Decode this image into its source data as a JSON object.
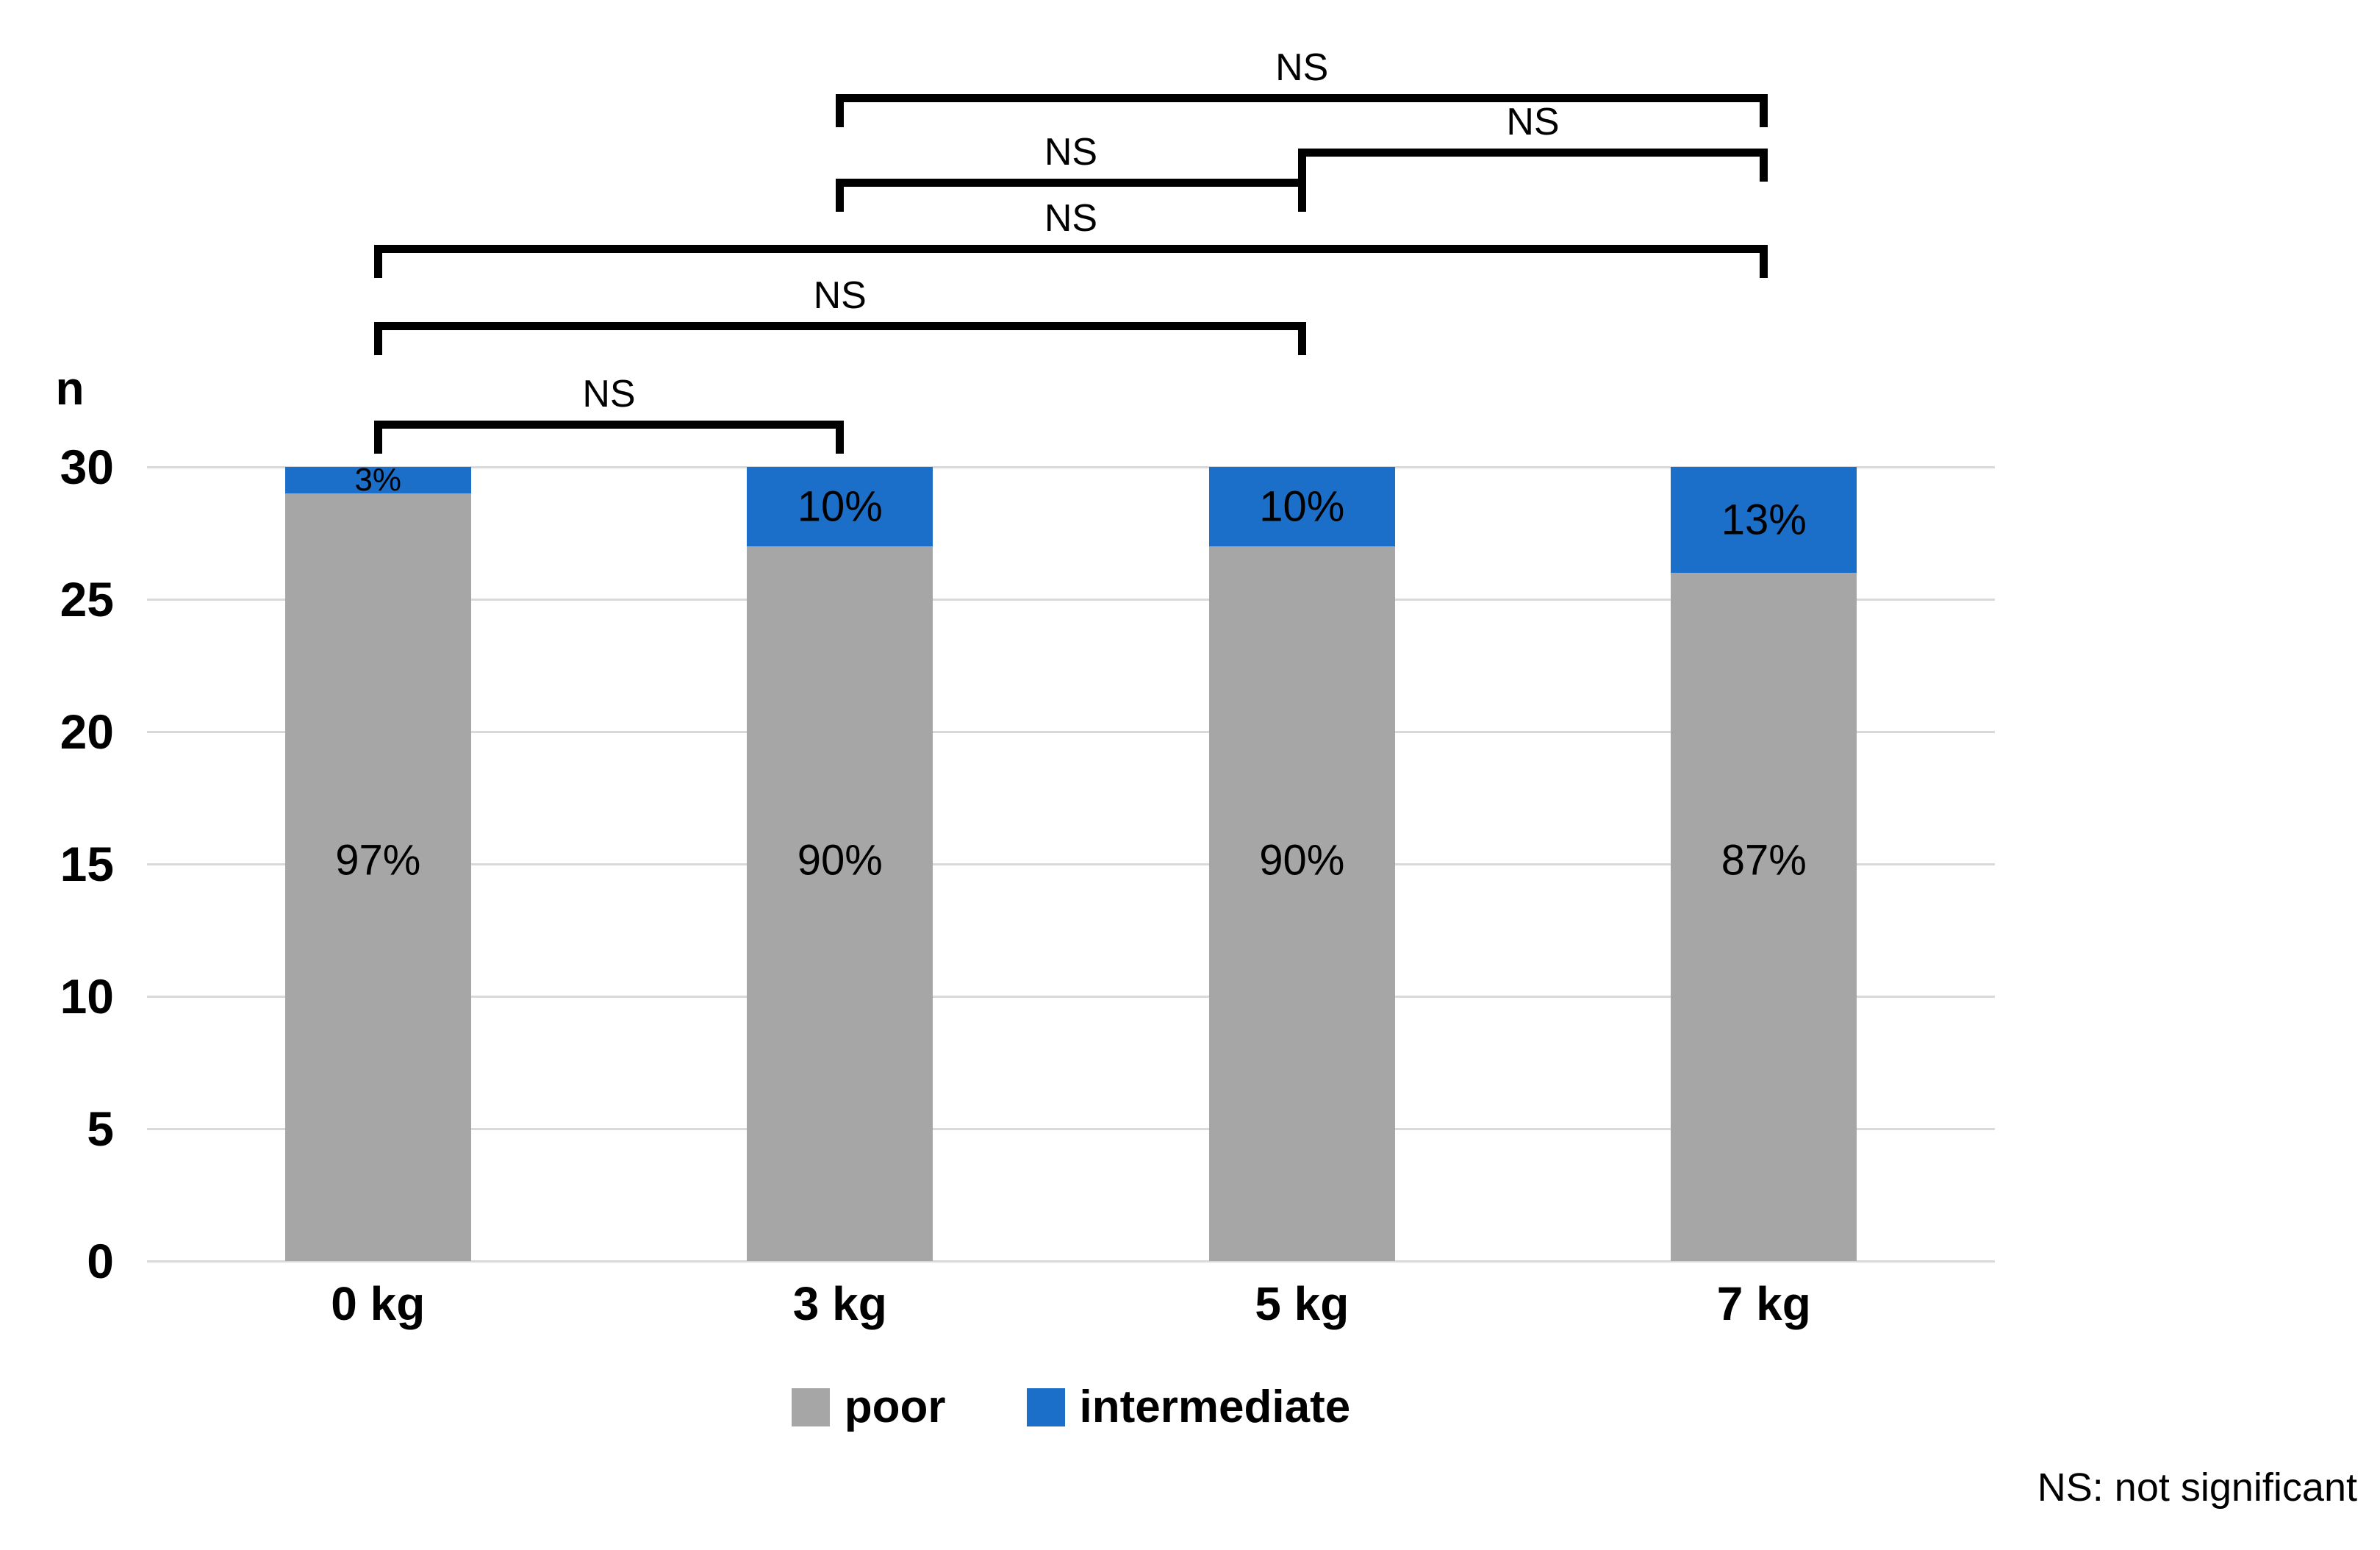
{
  "figure": {
    "y_axis_title": "n",
    "footnote": "NS: not significant"
  },
  "chart_data": {
    "type": "bar",
    "stacked": true,
    "categories": [
      "0 kg",
      "3 kg",
      "5 kg",
      "7 kg"
    ],
    "ylabel": "n",
    "ylim": [
      0,
      30
    ],
    "yticks": [
      0,
      5,
      10,
      15,
      20,
      25,
      30
    ],
    "grid": true,
    "gridline_color": "#d9d9d9",
    "series": [
      {
        "name": "poor",
        "color": "#a6a6a6",
        "values": [
          29,
          27,
          27,
          26
        ],
        "labels": [
          "97%",
          "90%",
          "90%",
          "87%"
        ]
      },
      {
        "name": "intermediate",
        "color": "#1b6fc8",
        "values": [
          1,
          3,
          3,
          4
        ],
        "labels": [
          "3%",
          "10%",
          "10%",
          "13%"
        ]
      }
    ],
    "legend_position": "bottom",
    "legend": [
      {
        "label": "poor",
        "color": "#a6a6a6"
      },
      {
        "label": "intermediate",
        "color": "#1b6fc8"
      }
    ],
    "significance_brackets": [
      {
        "from": "3 kg",
        "to": "7 kg",
        "label": "NS"
      },
      {
        "from": "5 kg",
        "to": "7 kg",
        "label": "NS"
      },
      {
        "from": "3 kg",
        "to": "5 kg",
        "label": "NS"
      },
      {
        "from": "0 kg",
        "to": "7 kg",
        "label": "NS"
      },
      {
        "from": "0 kg",
        "to": "5 kg",
        "label": "NS"
      },
      {
        "from": "0 kg",
        "to": "3 kg",
        "label": "NS"
      }
    ],
    "footnote": "NS: not significant"
  }
}
